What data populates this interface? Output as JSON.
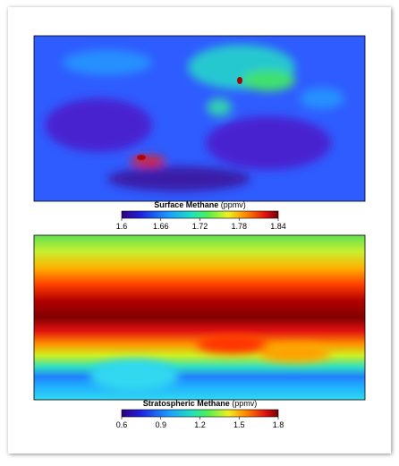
{
  "chart_data": [
    {
      "type": "colormap",
      "title": "Surface Methane",
      "unit": "(ppmv)",
      "xlim": [
        1.6,
        1.84
      ],
      "xticks": [
        1.6,
        1.66,
        1.72,
        1.78,
        1.84
      ]
    },
    {
      "type": "colormap",
      "title": "Stratospheric Methane",
      "unit": "(ppmv)",
      "xlim": [
        0.6,
        1.8
      ],
      "xticks": [
        0.6,
        0.9,
        1.2,
        1.5,
        1.8
      ]
    }
  ]
}
